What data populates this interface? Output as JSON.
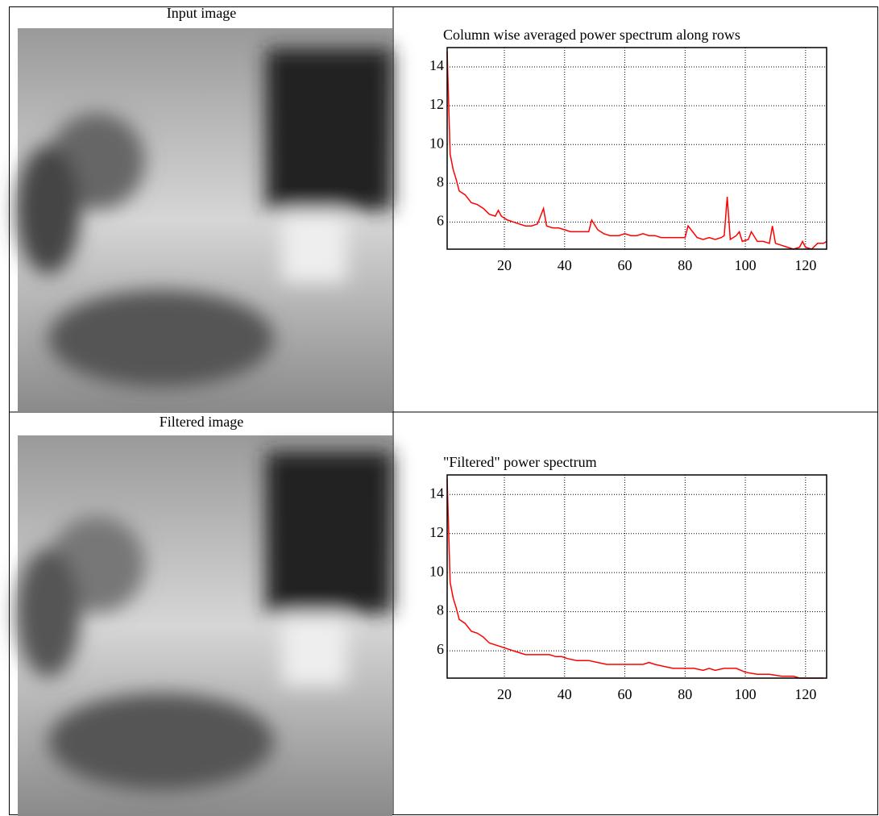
{
  "captions": [
    "Input image",
    "Filtered image"
  ],
  "chart_data": [
    {
      "type": "line",
      "title": "Column wise averaged power spectrum along rows",
      "color": "#ff0000",
      "x": [
        1,
        2,
        3,
        4,
        5,
        7,
        9,
        11,
        13,
        15,
        17,
        18,
        19,
        21,
        23,
        25,
        27,
        29,
        31,
        33,
        34,
        36,
        38,
        40,
        42,
        46,
        48,
        49,
        51,
        53,
        55,
        58,
        60,
        62,
        64,
        66,
        68,
        70,
        72,
        75,
        78,
        80,
        81,
        82,
        84,
        86,
        88,
        90,
        92,
        93,
        94,
        95,
        97,
        98,
        99,
        101,
        102,
        104,
        106,
        108,
        109,
        110,
        112,
        114,
        116,
        118,
        119,
        120,
        122,
        124,
        126,
        127
      ],
      "values": [
        14.8,
        9.5,
        8.7,
        8.2,
        7.6,
        7.4,
        7.0,
        6.9,
        6.7,
        6.4,
        6.3,
        6.6,
        6.3,
        6.1,
        6.0,
        5.9,
        5.8,
        5.8,
        5.9,
        6.7,
        5.8,
        5.7,
        5.7,
        5.6,
        5.5,
        5.5,
        5.5,
        6.1,
        5.6,
        5.4,
        5.3,
        5.3,
        5.4,
        5.3,
        5.3,
        5.4,
        5.3,
        5.3,
        5.2,
        5.2,
        5.2,
        5.2,
        5.8,
        5.6,
        5.2,
        5.1,
        5.2,
        5.1,
        5.2,
        5.3,
        7.3,
        5.1,
        5.3,
        5.5,
        5.0,
        5.1,
        5.5,
        5.0,
        5.0,
        4.9,
        5.8,
        4.9,
        4.8,
        4.7,
        4.6,
        4.7,
        5.0,
        4.7,
        4.6,
        4.9,
        4.9,
        5.0
      ],
      "xlim": [
        1,
        127
      ],
      "ylim": [
        4.6,
        15
      ],
      "xticks": [
        20,
        40,
        60,
        80,
        100,
        120
      ],
      "yticks": [
        6,
        8,
        10,
        12,
        14
      ],
      "grid": true
    },
    {
      "type": "line",
      "title": "\"Filtered\" power spectrum",
      "color": "#ff0000",
      "x": [
        1,
        2,
        3,
        4,
        5,
        7,
        9,
        11,
        13,
        15,
        17,
        19,
        21,
        23,
        25,
        27,
        29,
        31,
        33,
        35,
        37,
        39,
        41,
        44,
        48,
        51,
        54,
        58,
        62,
        66,
        68,
        70,
        73,
        76,
        80,
        83,
        86,
        88,
        90,
        93,
        97,
        100,
        104,
        108,
        112,
        116,
        118,
        122,
        126
      ],
      "values": [
        14.8,
        9.5,
        8.7,
        8.2,
        7.6,
        7.4,
        7.0,
        6.9,
        6.7,
        6.4,
        6.3,
        6.2,
        6.1,
        6.0,
        5.9,
        5.8,
        5.8,
        5.8,
        5.8,
        5.8,
        5.7,
        5.7,
        5.6,
        5.5,
        5.5,
        5.4,
        5.3,
        5.3,
        5.3,
        5.3,
        5.4,
        5.3,
        5.2,
        5.1,
        5.1,
        5.1,
        5.0,
        5.1,
        5.0,
        5.1,
        5.1,
        4.9,
        4.8,
        4.8,
        4.7,
        4.7,
        4.6,
        4.6,
        4.6
      ],
      "xlim": [
        1,
        127
      ],
      "ylim": [
        4.6,
        15
      ],
      "xticks": [
        20,
        40,
        60,
        80,
        100,
        120
      ],
      "yticks": [
        6,
        8,
        10,
        12,
        14
      ],
      "grid": true
    }
  ]
}
